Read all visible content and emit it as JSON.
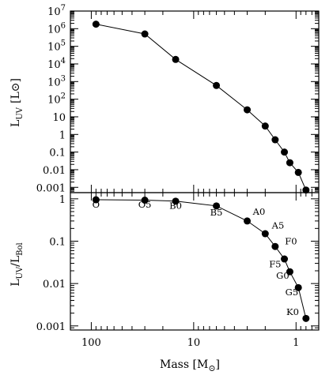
{
  "chart_data": [
    {
      "type": "line",
      "panel": "top",
      "xscale": "log",
      "yscale": "log",
      "xlim": [
        160,
        0.6
      ],
      "ylim": [
        0.0005,
        10000000
      ],
      "ylabel": {
        "main": "L",
        "sub": "UV",
        "unit": "[L",
        "unit_sym": "⊙",
        "unit_close": "]"
      },
      "yticks": [
        {
          "value": 10000000,
          "base": "10",
          "exp": "7"
        },
        {
          "value": 1000000,
          "base": "10",
          "exp": "6"
        },
        {
          "value": 100000,
          "base": "10",
          "exp": "5"
        },
        {
          "value": 10000,
          "base": "10",
          "exp": "4"
        },
        {
          "value": 1000,
          "base": "10",
          "exp": "3"
        },
        {
          "value": 100,
          "base": "10",
          "exp": "2"
        },
        {
          "value": 10,
          "base": "10",
          "exp": ""
        },
        {
          "value": 1,
          "base": "1",
          "exp": ""
        },
        {
          "value": 0.1,
          "base": "0.1",
          "exp": ""
        },
        {
          "value": 0.01,
          "base": "0.01",
          "exp": ""
        },
        {
          "value": 0.001,
          "base": "0.001",
          "exp": ""
        }
      ],
      "series": [
        {
          "x": [
            90,
            30,
            15,
            6,
            3,
            2,
            1.6,
            1.3,
            1.15,
            0.95,
            0.8
          ],
          "y": [
            1800000,
            500000,
            18000,
            600,
            25,
            3,
            0.5,
            0.1,
            0.025,
            0.007,
            0.0007
          ]
        }
      ]
    },
    {
      "type": "line",
      "panel": "bottom",
      "xscale": "log",
      "yscale": "log",
      "xlim": [
        160,
        0.6
      ],
      "ylim": [
        0.0008,
        1.4
      ],
      "ylabel": {
        "main": "L",
        "sub": "UV",
        "slash": "/L",
        "sub2": "Bol"
      },
      "xlabel": {
        "main": "Mass [M",
        "sym": "⊙",
        "close": "]"
      },
      "yticks": [
        {
          "value": 1,
          "label": "1"
        },
        {
          "value": 0.1,
          "label": "0.1"
        },
        {
          "value": 0.01,
          "label": "0.01"
        },
        {
          "value": 0.001,
          "label": "0.001"
        }
      ],
      "xticks": [
        {
          "value": 100,
          "label": "100"
        },
        {
          "value": 10,
          "label": "10"
        },
        {
          "value": 1,
          "label": "1"
        }
      ],
      "series": [
        {
          "x": [
            90,
            30,
            15,
            6,
            3,
            2,
            1.6,
            1.3,
            1.15,
            0.95,
            0.8
          ],
          "y": [
            0.95,
            0.93,
            0.88,
            0.68,
            0.3,
            0.15,
            0.075,
            0.038,
            0.019,
            0.008,
            0.0015
          ]
        }
      ],
      "annotations": [
        {
          "text": "O",
          "x": 90,
          "y": 0.62
        },
        {
          "text": "O5",
          "x": 30,
          "y": 0.62
        },
        {
          "text": "B0",
          "x": 15,
          "y": 0.58
        },
        {
          "text": "B5",
          "x": 6,
          "y": 0.4
        },
        {
          "text": "A0",
          "x": 2.3,
          "y": 0.42
        },
        {
          "text": "A5",
          "x": 1.5,
          "y": 0.2
        },
        {
          "text": "F0",
          "x": 1.12,
          "y": 0.085
        },
        {
          "text": "F5",
          "x": 1.6,
          "y": 0.024
        },
        {
          "text": "G0",
          "x": 1.35,
          "y": 0.013
        },
        {
          "text": "G5",
          "x": 1.1,
          "y": 0.0053
        },
        {
          "text": "K0",
          "x": 1.08,
          "y": 0.0018
        }
      ]
    }
  ]
}
